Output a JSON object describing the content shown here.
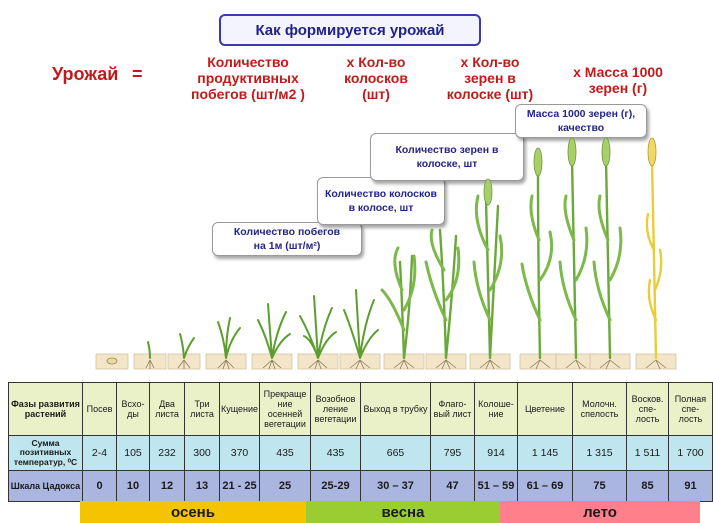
{
  "title": "Как формируется урожай",
  "formula": {
    "lhs": "Урожай",
    "eq": "=",
    "terms": [
      {
        "op": "",
        "lines": [
          "Количество",
          "продуктивных",
          "побегов (шт/м2 )"
        ]
      },
      {
        "op": "x",
        "lines": [
          "x  Кол-во",
          "колосков",
          "(шт)"
        ]
      },
      {
        "op": "x",
        "lines": [
          "x  Кол-во",
          "зерен в",
          "колоске (шт)"
        ]
      },
      {
        "op": "x",
        "lines": [
          "x  Масса 1000",
          "зерен (г)"
        ]
      }
    ]
  },
  "callouts": [
    {
      "lines": [
        "Количество  побегов",
        "на 1м (шт/м²)"
      ]
    },
    {
      "lines": [
        "Количество  колосков",
        "в колосе, шт"
      ]
    },
    {
      "lines": [
        "Количество  зерен в",
        "колоске, шт"
      ]
    },
    {
      "lines": [
        "Масса 1000  зерен (г),",
        "качество"
      ]
    }
  ],
  "table": {
    "header_phase": "Фазы развития растений",
    "header_temp": "Сумма позитивных температур, ⁰С",
    "header_scale": "Шкала Цадокса",
    "phases": [
      {
        "name": "Посев",
        "temp": "2-4",
        "scale": "0"
      },
      {
        "name": "Всхо-ды",
        "temp": "105",
        "scale": "10"
      },
      {
        "name": "Два листа",
        "temp": "232",
        "scale": "12"
      },
      {
        "name": "Три листа",
        "temp": "300",
        "scale": "13"
      },
      {
        "name": "Кущение",
        "temp": "370",
        "scale": "21 - 25"
      },
      {
        "name": "Прекраще ние осенней вегетации",
        "temp": "435",
        "scale": "25"
      },
      {
        "name": "Возобнов ление вегетации",
        "temp": "435",
        "scale": "25-29"
      },
      {
        "name": "Выход в трубку",
        "temp": "665",
        "scale": "30 – 37"
      },
      {
        "name": "Флаго-вый лист",
        "temp": "795",
        "scale": "47"
      },
      {
        "name": "Колоше-ние",
        "temp": "914",
        "scale": "51 – 59"
      },
      {
        "name": "Цветение",
        "temp": "1 145",
        "scale": "61 – 69"
      },
      {
        "name": "Молочн. спелость",
        "temp": "1 315",
        "scale": "75"
      },
      {
        "name": "Восков. спе-лость",
        "temp": "1 511",
        "scale": "85"
      },
      {
        "name": "Полная спе-лость",
        "temp": "1 700",
        "scale": "91"
      }
    ]
  },
  "seasons": [
    {
      "name": "осень",
      "color": "#f5c400"
    },
    {
      "name": "весна",
      "color": "#9acd32"
    },
    {
      "name": "лето",
      "color": "#ff7f8a"
    }
  ]
}
